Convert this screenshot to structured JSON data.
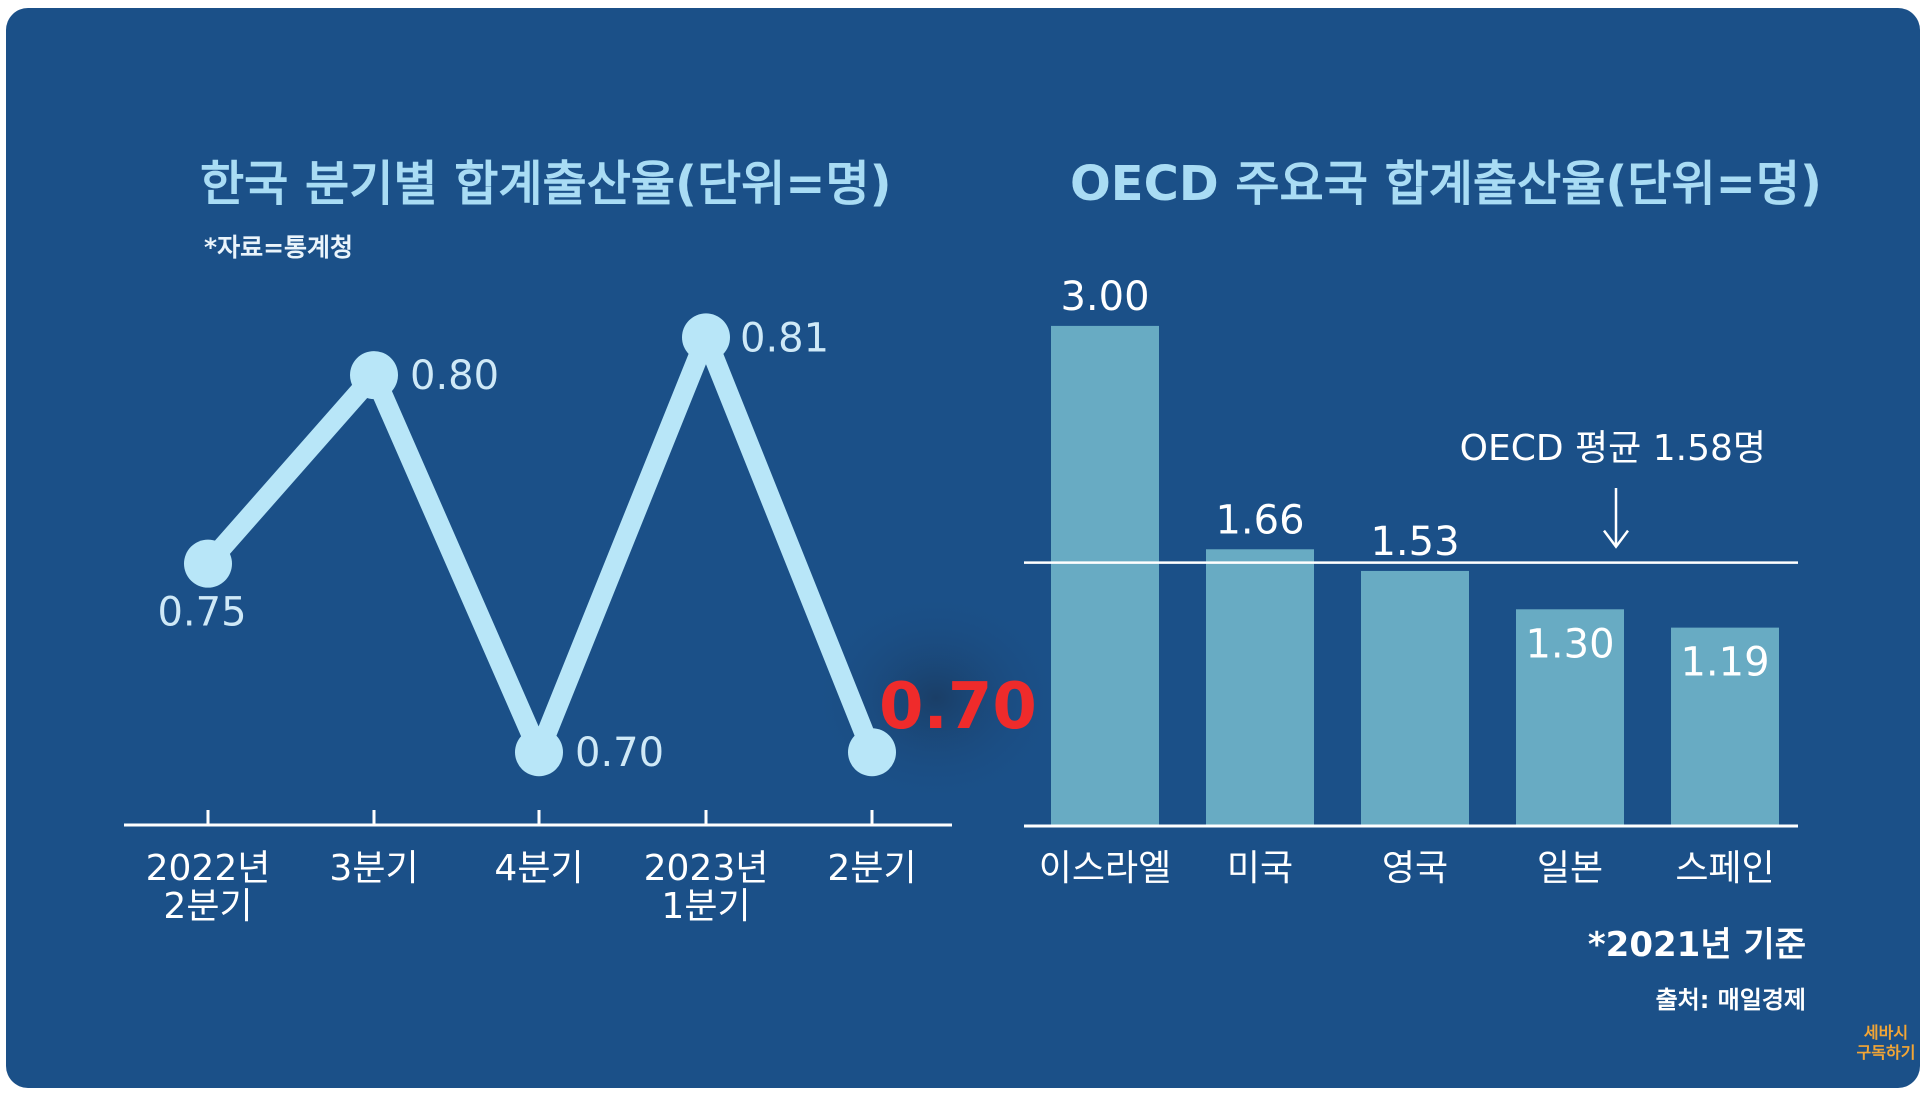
{
  "colors": {
    "background": "#1b5088",
    "title": "#a9dcf4",
    "line": "#b8e6f8",
    "bar": "#68abc3",
    "highlight": "#ef2b2b",
    "watermark": "#f2a535"
  },
  "left_chart": {
    "title": "한국 분기별 합계출산율(단위=명)",
    "source_note": "*자료=통계청",
    "highlight_value": "0.70"
  },
  "right_chart": {
    "title": "OECD 주요국 합계출산율(단위=명)",
    "average_label": "OECD 평균 1.58명",
    "basis_note": "*2021년 기준",
    "source": "출처: 매일경제"
  },
  "watermark": {
    "line1": "세바시",
    "line2": "구독하기"
  },
  "chart_data": [
    {
      "type": "line",
      "title": "한국 분기별 합계출산율(단위=명)",
      "categories": [
        [
          "2022년",
          "2분기"
        ],
        [
          "3분기"
        ],
        [
          "4분기"
        ],
        [
          "2023년",
          "1분기"
        ],
        [
          "2분기"
        ]
      ],
      "values": [
        0.75,
        0.8,
        0.7,
        0.81,
        0.7
      ],
      "value_labels": [
        "0.75",
        "0.80",
        "0.70",
        "0.81",
        "0.70"
      ],
      "ylim": [
        0.664,
        0.839
      ],
      "grid": false
    },
    {
      "type": "bar",
      "title": "OECD 주요국 합계출산율(단위=명)",
      "categories": [
        "이스라엘",
        "미국",
        "영국",
        "일본",
        "스페인"
      ],
      "values": [
        3.0,
        1.66,
        1.53,
        1.3,
        1.19
      ],
      "value_labels": [
        "3.00",
        "1.66",
        "1.53",
        "1.30",
        "1.19"
      ],
      "reference_line": {
        "value": 1.58,
        "label": "OECD 평균 1.58명"
      },
      "ylim": [
        0,
        3.0
      ],
      "grid": false
    }
  ]
}
